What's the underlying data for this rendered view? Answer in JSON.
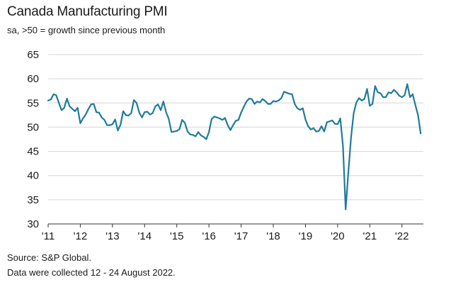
{
  "header": {
    "title": "Canada Manufacturing PMI",
    "subtitle": "sa, >50 = growth since previous month"
  },
  "footer": {
    "source": "Source: S&P Global.",
    "collected": "Data were collected 12 - 24 August 2022."
  },
  "colors": {
    "line": "#1f7b9a",
    "grid": "#d6d6d6",
    "axis": "#333333"
  },
  "chart_data": {
    "type": "line",
    "title": "Canada Manufacturing PMI",
    "subtitle": "sa, >50 = growth since previous month",
    "xlabel": "",
    "ylabel": "",
    "ylim": [
      30,
      65
    ],
    "yticks": [
      30,
      35,
      40,
      45,
      50,
      55,
      60,
      65
    ],
    "xlim": [
      2011.0,
      2022.667
    ],
    "xticks": [
      {
        "label": "'11",
        "year": 2011
      },
      {
        "label": "'12",
        "year": 2012
      },
      {
        "label": "'13",
        "year": 2013
      },
      {
        "label": "'14",
        "year": 2014
      },
      {
        "label": "'15",
        "year": 2015
      },
      {
        "label": "'16",
        "year": 2016
      },
      {
        "label": "'17",
        "year": 2017
      },
      {
        "label": "'18",
        "year": 2018
      },
      {
        "label": "'19",
        "year": 2019
      },
      {
        "label": "'20",
        "year": 2020
      },
      {
        "label": "'21",
        "year": 2021
      },
      {
        "label": "'22",
        "year": 2022
      }
    ],
    "grid": "horizontal",
    "series": [
      {
        "start": "2011-01",
        "frequency": "monthly",
        "values": [
          55.5,
          55.7,
          56.8,
          56.6,
          55.0,
          53.5,
          54.0,
          55.9,
          54.3,
          53.8,
          53.3,
          54.0,
          50.8,
          51.8,
          52.6,
          53.7,
          54.7,
          54.8,
          53.1,
          53.0,
          52.0,
          51.5,
          50.4,
          50.4,
          50.6,
          51.6,
          49.3,
          50.5,
          53.3,
          52.5,
          52.4,
          52.9,
          55.6,
          55.0,
          53.0,
          52.0,
          53.1,
          53.2,
          52.6,
          52.9,
          54.3,
          54.7,
          53.5,
          55.3,
          53.1,
          51.7,
          49.0,
          49.1,
          49.2,
          49.6,
          51.5,
          50.9,
          49.1,
          48.5,
          48.4,
          48.1,
          49.0,
          48.3,
          48.0,
          47.5,
          49.0,
          51.7,
          52.2,
          52.0,
          51.8,
          51.5,
          51.9,
          50.4,
          49.4,
          50.4,
          51.3,
          51.5,
          53.0,
          54.2,
          55.3,
          55.9,
          55.8,
          54.8,
          55.3,
          55.1,
          55.8,
          55.4,
          54.8,
          54.8,
          55.4,
          55.3,
          55.5,
          56.0,
          57.3,
          57.1,
          56.9,
          56.8,
          54.8,
          53.9,
          53.6,
          53.9,
          51.6,
          50.2,
          49.5,
          49.8,
          49.1,
          49.2,
          50.2,
          49.1,
          51.0,
          51.2,
          51.4,
          50.7,
          50.6,
          51.8,
          46.1,
          33.0,
          40.6,
          47.8,
          52.9,
          55.1,
          56.0,
          55.5,
          55.8,
          57.9,
          54.4,
          54.8,
          58.5,
          57.2,
          57.0,
          56.2,
          56.2,
          57.2,
          57.0,
          57.7,
          57.2,
          56.5,
          56.2,
          56.6,
          58.9,
          56.2,
          56.8,
          54.6,
          52.5,
          48.7
        ]
      }
    ]
  },
  "source": "Source: S&P Global.",
  "note": "Data were collected 12 - 24 August 2022."
}
